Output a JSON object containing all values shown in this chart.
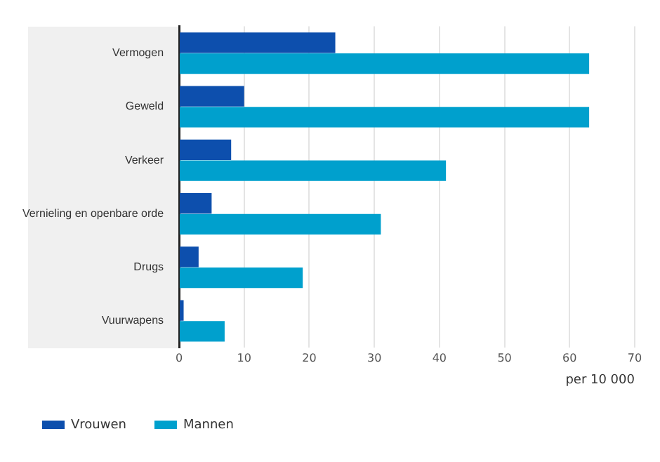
{
  "chart_data": {
    "type": "bar",
    "orientation": "horizontal",
    "xlabel": "per 10 000",
    "categories": [
      "Vermogen",
      "Geweld",
      "Verkeer",
      "Vernieling en openbare orde",
      "Drugs",
      "Vuurwapens"
    ],
    "series": [
      {
        "name": "Vrouwen",
        "color": "#0d4fad",
        "values": [
          24,
          10,
          8,
          5,
          3,
          0.7
        ]
      },
      {
        "name": "Mannen",
        "color": "#00a0cd",
        "values": [
          63,
          63,
          41,
          31,
          19,
          7
        ]
      }
    ],
    "xlim": [
      0,
      70
    ],
    "xticks": [
      0,
      10,
      20,
      30,
      40,
      50,
      60,
      70
    ],
    "grid": "x",
    "legend": "bottom left"
  }
}
